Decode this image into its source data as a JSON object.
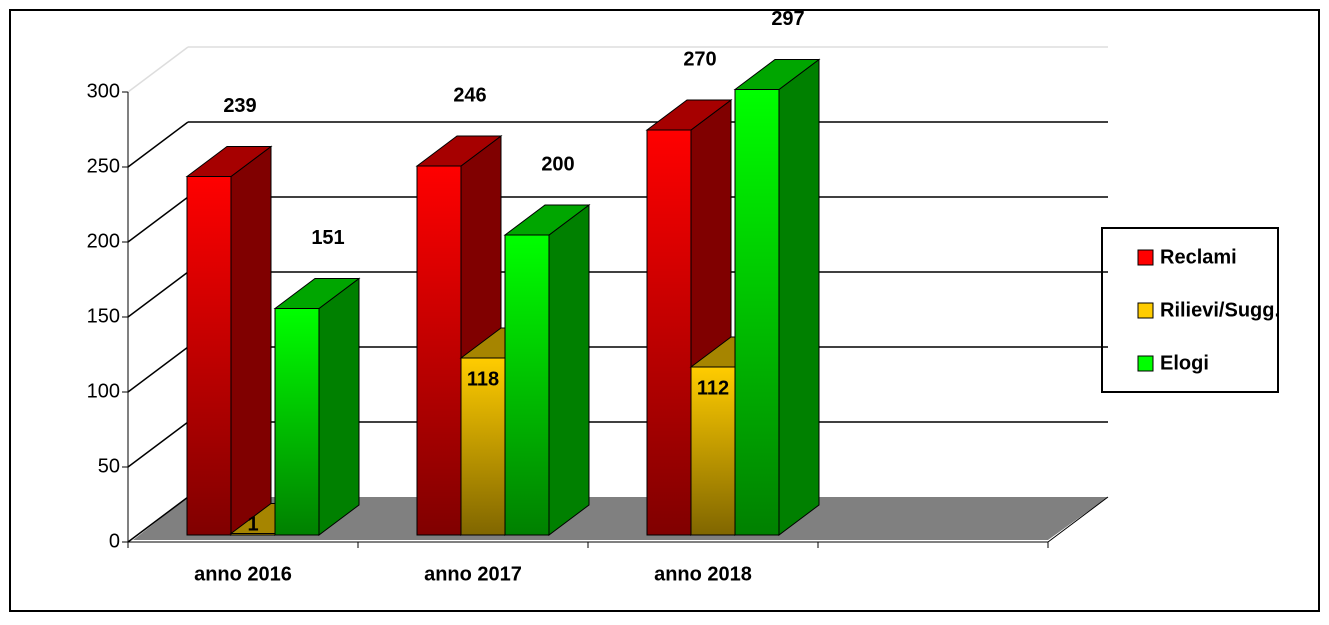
{
  "chart_data": {
    "type": "bar3d",
    "categories": [
      "anno 2016",
      "anno 2017",
      "anno 2018",
      null
    ],
    "series": [
      {
        "name": "Reclami",
        "color": "#ff0000",
        "values": [
          239,
          246,
          270,
          null
        ]
      },
      {
        "name": "Rilievi/Sugg.",
        "color": "#ffcc00",
        "values": [
          1,
          118,
          112,
          null
        ]
      },
      {
        "name": "Elogi",
        "color": "#00ff00",
        "values": [
          151,
          200,
          297,
          null
        ]
      }
    ],
    "ylim": [
      0,
      300
    ],
    "yticks": [
      0,
      50,
      100,
      150,
      200,
      250,
      300
    ],
    "grid": true,
    "legend": "right"
  }
}
